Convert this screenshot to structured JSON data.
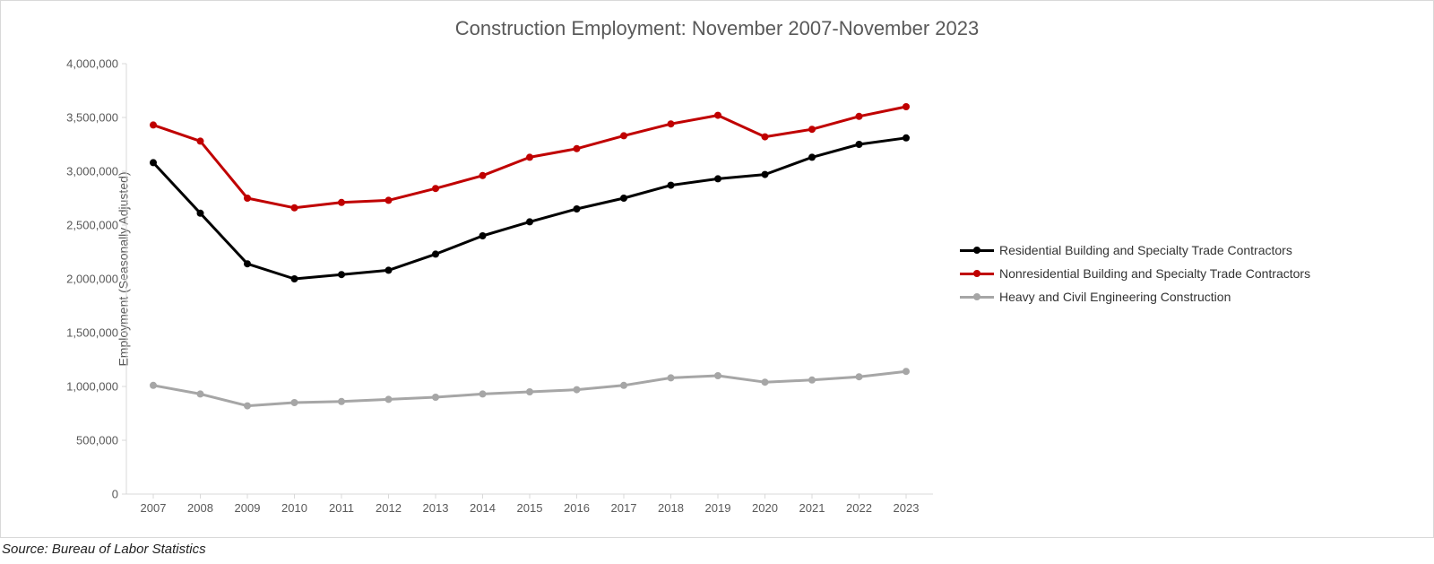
{
  "chart": {
    "type": "line",
    "title": "Construction Employment: November 2007-November 2023",
    "title_fontsize": 22,
    "title_color": "#595959",
    "background_color": "#ffffff",
    "border_color": "#d9d9d9",
    "axis_line_color": "#d9d9d9",
    "tick_label_color": "#595959",
    "tick_label_fontsize": 13,
    "xlabel": "",
    "ylabel": "Employment (Seasonally Adjusted)",
    "ylabel_fontsize": 14,
    "ylabel_color": "#595959",
    "ylim": [
      0,
      4000000
    ],
    "ytick_step": 500000,
    "ytick_labels": [
      "0",
      "500,000",
      "1,000,000",
      "1,500,000",
      "2,000,000",
      "2,500,000",
      "3,000,000",
      "3,500,000",
      "4,000,000"
    ],
    "categories": [
      "2007",
      "2008",
      "2009",
      "2010",
      "2011",
      "2012",
      "2013",
      "2014",
      "2015",
      "2016",
      "2017",
      "2018",
      "2019",
      "2020",
      "2021",
      "2022",
      "2023"
    ],
    "grid": false,
    "line_width": 3,
    "marker_style": "circle",
    "marker_size": 8,
    "legend_fontsize": 14,
    "legend_text_color": "#333333",
    "series": [
      {
        "name": "Residential Building and Specialty Trade Contractors",
        "color": "#000000",
        "values": [
          3080000,
          2610000,
          2140000,
          2000000,
          2040000,
          2080000,
          2230000,
          2400000,
          2530000,
          2650000,
          2750000,
          2870000,
          2930000,
          2970000,
          3130000,
          3250000,
          3310000
        ]
      },
      {
        "name": "Nonresidential Building and Specialty Trade Contractors",
        "color": "#c00000",
        "values": [
          3430000,
          3280000,
          2750000,
          2660000,
          2710000,
          2730000,
          2840000,
          2960000,
          3130000,
          3210000,
          3330000,
          3440000,
          3520000,
          3320000,
          3390000,
          3510000,
          3600000
        ]
      },
      {
        "name": "Heavy and Civil Engineering Construction",
        "color": "#a6a6a6",
        "values": [
          1010000,
          930000,
          820000,
          850000,
          860000,
          880000,
          900000,
          930000,
          950000,
          970000,
          1010000,
          1080000,
          1100000,
          1040000,
          1060000,
          1090000,
          1140000
        ]
      }
    ]
  },
  "source": "Source: Bureau of Labor Statistics"
}
